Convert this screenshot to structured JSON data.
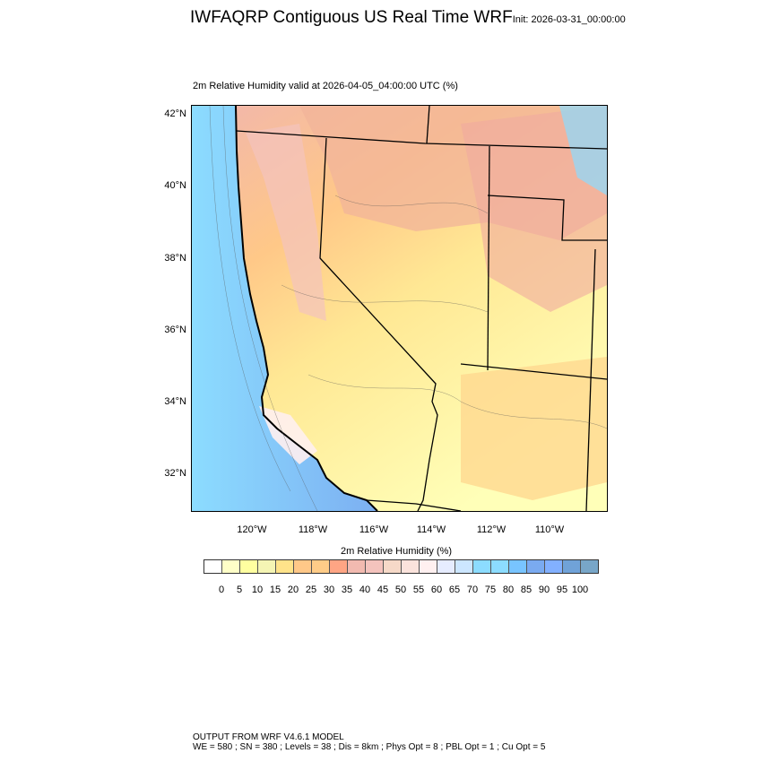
{
  "title": "IWFAQRP Contiguous US Real Time WRF",
  "init": "Init: 2026-03-31_00:00:00",
  "subtitle": "2m Relative Humidity valid at 2026-04-05_04:00:00 UTC   (%)",
  "map": {
    "lat_labels": [
      "42°N",
      "40°N",
      "38°N",
      "36°N",
      "34°N",
      "32°N"
    ],
    "lon_labels": [
      "120°W",
      "118°W",
      "116°W",
      "114°W",
      "112°W",
      "110°W"
    ],
    "ocean_color": "#7fb0f0",
    "coast_color": "#9ad8ff"
  },
  "colorbar": {
    "title": "2m Relative Humidity  (%)",
    "labels": [
      "0",
      "5",
      "10",
      "15",
      "20",
      "25",
      "30",
      "35",
      "40",
      "45",
      "50",
      "55",
      "60",
      "65",
      "70",
      "75",
      "80",
      "85",
      "90",
      "95",
      "100"
    ],
    "colors": [
      "#ffffff",
      "#ffffc8",
      "#ffffa0",
      "#f5f5b4",
      "#ffe38a",
      "#ffc888",
      "#ffcc88",
      "#ffa584",
      "#f2bab0",
      "#f4c3bd",
      "#f6d9c8",
      "#fbe3dc",
      "#fff0f0",
      "#e6ecff",
      "#cce6ff",
      "#8cdcff",
      "#8cdcff",
      "#78c4ff",
      "#7aaaf0",
      "#82b0ff",
      "#70a2d8",
      "#78a6c8"
    ]
  },
  "footer": {
    "line1": "OUTPUT FROM WRF V4.6.1 MODEL",
    "line2": "WE = 580 ; SN = 380 ; Levels = 38 ; Dis = 8km ; Phys Opt = 8 ; PBL Opt = 1 ; Cu Opt = 5"
  }
}
